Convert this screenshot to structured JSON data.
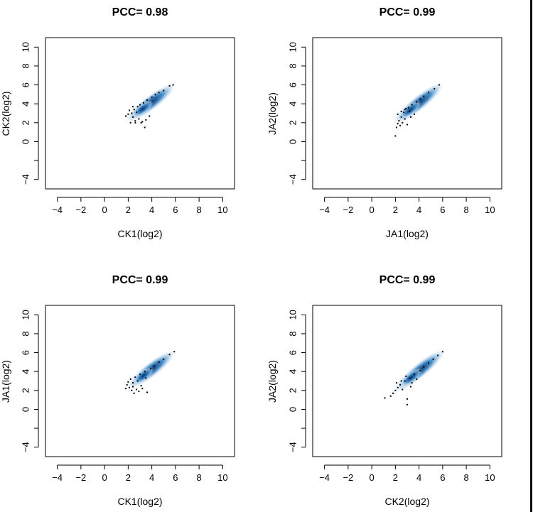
{
  "colors": {
    "axis": "#000000",
    "density_core": "#08306b",
    "density_mid": "#2f7fc1",
    "density_edge": "#c6dbef",
    "points": "#000000"
  },
  "chart_data": [
    {
      "type": "scatter",
      "title": "PCC= 0.98",
      "xlabel": "CK1(log2)",
      "ylabel": "CK2(log2)",
      "xlim": [
        -5,
        11
      ],
      "ylim": [
        -5,
        11
      ],
      "x_ticks": [
        "−4",
        "−2",
        "0",
        "2",
        "4",
        "6",
        "8",
        "10"
      ],
      "y_ticks": [
        "−4",
        "0",
        "2",
        "4",
        "6",
        "8",
        "10"
      ],
      "density_ridge": {
        "from": [
          2.2,
          2.5
        ],
        "to": [
          5.6,
          5.7
        ]
      },
      "points": [
        [
          2.0,
          2.9
        ],
        [
          2.1,
          3.3
        ],
        [
          2.3,
          3.0
        ],
        [
          2.4,
          2.6
        ],
        [
          2.5,
          3.4
        ],
        [
          2.6,
          2.2
        ],
        [
          2.7,
          3.1
        ],
        [
          2.8,
          3.7
        ],
        [
          2.9,
          2.4
        ],
        [
          3.0,
          3.9
        ],
        [
          3.2,
          2.1
        ],
        [
          3.3,
          4.1
        ],
        [
          3.4,
          1.5
        ],
        [
          3.6,
          4.4
        ],
        [
          3.8,
          2.7
        ],
        [
          4.0,
          4.7
        ],
        [
          4.3,
          5.0
        ],
        [
          4.6,
          5.2
        ],
        [
          5.0,
          5.4
        ],
        [
          5.5,
          5.9
        ],
        [
          5.8,
          6.0
        ],
        [
          2.2,
          2.0
        ],
        [
          2.6,
          2.0
        ],
        [
          3.1,
          2.0
        ],
        [
          3.5,
          2.3
        ],
        [
          1.8,
          2.7
        ],
        [
          2.4,
          3.7
        ]
      ]
    },
    {
      "type": "scatter",
      "title": "PCC= 0.99",
      "xlabel": "JA1(log2)",
      "ylabel": "JA2(log2)",
      "xlim": [
        -5,
        11
      ],
      "ylim": [
        -5,
        11
      ],
      "x_ticks": [
        "−4",
        "−2",
        "0",
        "2",
        "4",
        "6",
        "8",
        "10"
      ],
      "y_ticks": [
        "−4",
        "0",
        "2",
        "4",
        "6",
        "8",
        "10"
      ],
      "density_ridge": {
        "from": [
          2.2,
          2.3
        ],
        "to": [
          5.7,
          5.8
        ]
      },
      "points": [
        [
          2.0,
          0.6
        ],
        [
          2.1,
          1.5
        ],
        [
          2.2,
          1.9
        ],
        [
          2.3,
          2.2
        ],
        [
          2.4,
          1.7
        ],
        [
          2.5,
          2.6
        ],
        [
          2.6,
          2.0
        ],
        [
          2.7,
          3.1
        ],
        [
          2.8,
          2.4
        ],
        [
          2.9,
          3.5
        ],
        [
          3.0,
          1.8
        ],
        [
          3.1,
          3.6
        ],
        [
          3.3,
          2.6
        ],
        [
          3.4,
          3.9
        ],
        [
          3.6,
          2.9
        ],
        [
          3.8,
          4.2
        ],
        [
          4.1,
          4.5
        ],
        [
          4.4,
          4.8
        ],
        [
          4.8,
          5.2
        ],
        [
          5.3,
          5.6
        ],
        [
          5.7,
          6.0
        ],
        [
          2.2,
          2.9
        ],
        [
          2.5,
          3.2
        ],
        [
          2.8,
          3.4
        ],
        [
          3.2,
          3.2
        ]
      ]
    },
    {
      "type": "scatter",
      "title": "PCC= 0.99",
      "xlabel": "CK1(log2)",
      "ylabel": "JA1(log2)",
      "xlim": [
        -5,
        11
      ],
      "ylim": [
        -5,
        11
      ],
      "x_ticks": [
        "−4",
        "−2",
        "0",
        "2",
        "4",
        "6",
        "8",
        "10"
      ],
      "y_ticks": [
        "−4",
        "0",
        "2",
        "4",
        "6",
        "8",
        "10"
      ],
      "density_ridge": {
        "from": [
          2.3,
          2.6
        ],
        "to": [
          5.6,
          5.8
        ]
      },
      "points": [
        [
          1.9,
          2.6
        ],
        [
          2.0,
          2.9
        ],
        [
          2.1,
          2.3
        ],
        [
          2.2,
          3.2
        ],
        [
          2.3,
          2.0
        ],
        [
          2.4,
          2.8
        ],
        [
          2.5,
          1.7
        ],
        [
          2.6,
          3.4
        ],
        [
          2.7,
          2.1
        ],
        [
          2.8,
          3.0
        ],
        [
          2.9,
          1.9
        ],
        [
          3.0,
          3.7
        ],
        [
          3.2,
          2.2
        ],
        [
          3.4,
          4.0
        ],
        [
          3.6,
          1.8
        ],
        [
          3.9,
          4.3
        ],
        [
          4.2,
          4.6
        ],
        [
          4.6,
          5.0
        ],
        [
          5.0,
          5.3
        ],
        [
          5.5,
          5.8
        ],
        [
          5.9,
          6.1
        ],
        [
          2.4,
          2.4
        ],
        [
          3.1,
          2.5
        ],
        [
          3.5,
          3.3
        ],
        [
          1.8,
          2.2
        ]
      ]
    },
    {
      "type": "scatter",
      "title": "PCC= 0.99",
      "xlabel": "CK2(log2)",
      "ylabel": "JA2(log2)",
      "xlim": [
        -5,
        11
      ],
      "ylim": [
        -5,
        11
      ],
      "x_ticks": [
        "−4",
        "−2",
        "0",
        "2",
        "4",
        "6",
        "8",
        "10"
      ],
      "y_ticks": [
        "−4",
        "0",
        "2",
        "4",
        "6",
        "8",
        "10"
      ],
      "density_ridge": {
        "from": [
          2.3,
          2.3
        ],
        "to": [
          5.8,
          5.9
        ]
      },
      "points": [
        [
          1.1,
          1.2
        ],
        [
          1.6,
          1.4
        ],
        [
          1.8,
          1.7
        ],
        [
          2.0,
          2.0
        ],
        [
          2.2,
          2.3
        ],
        [
          2.4,
          2.6
        ],
        [
          2.6,
          2.1
        ],
        [
          2.8,
          3.0
        ],
        [
          3.0,
          1.1
        ],
        [
          3.0,
          0.5
        ],
        [
          3.2,
          3.3
        ],
        [
          3.4,
          2.8
        ],
        [
          3.6,
          3.7
        ],
        [
          3.8,
          3.2
        ],
        [
          4.1,
          4.1
        ],
        [
          4.4,
          4.5
        ],
        [
          4.8,
          4.9
        ],
        [
          5.2,
          5.3
        ],
        [
          5.6,
          5.7
        ],
        [
          6.0,
          6.1
        ],
        [
          2.5,
          3.0
        ],
        [
          2.9,
          3.5
        ],
        [
          3.3,
          2.4
        ],
        [
          2.1,
          2.8
        ]
      ]
    }
  ]
}
